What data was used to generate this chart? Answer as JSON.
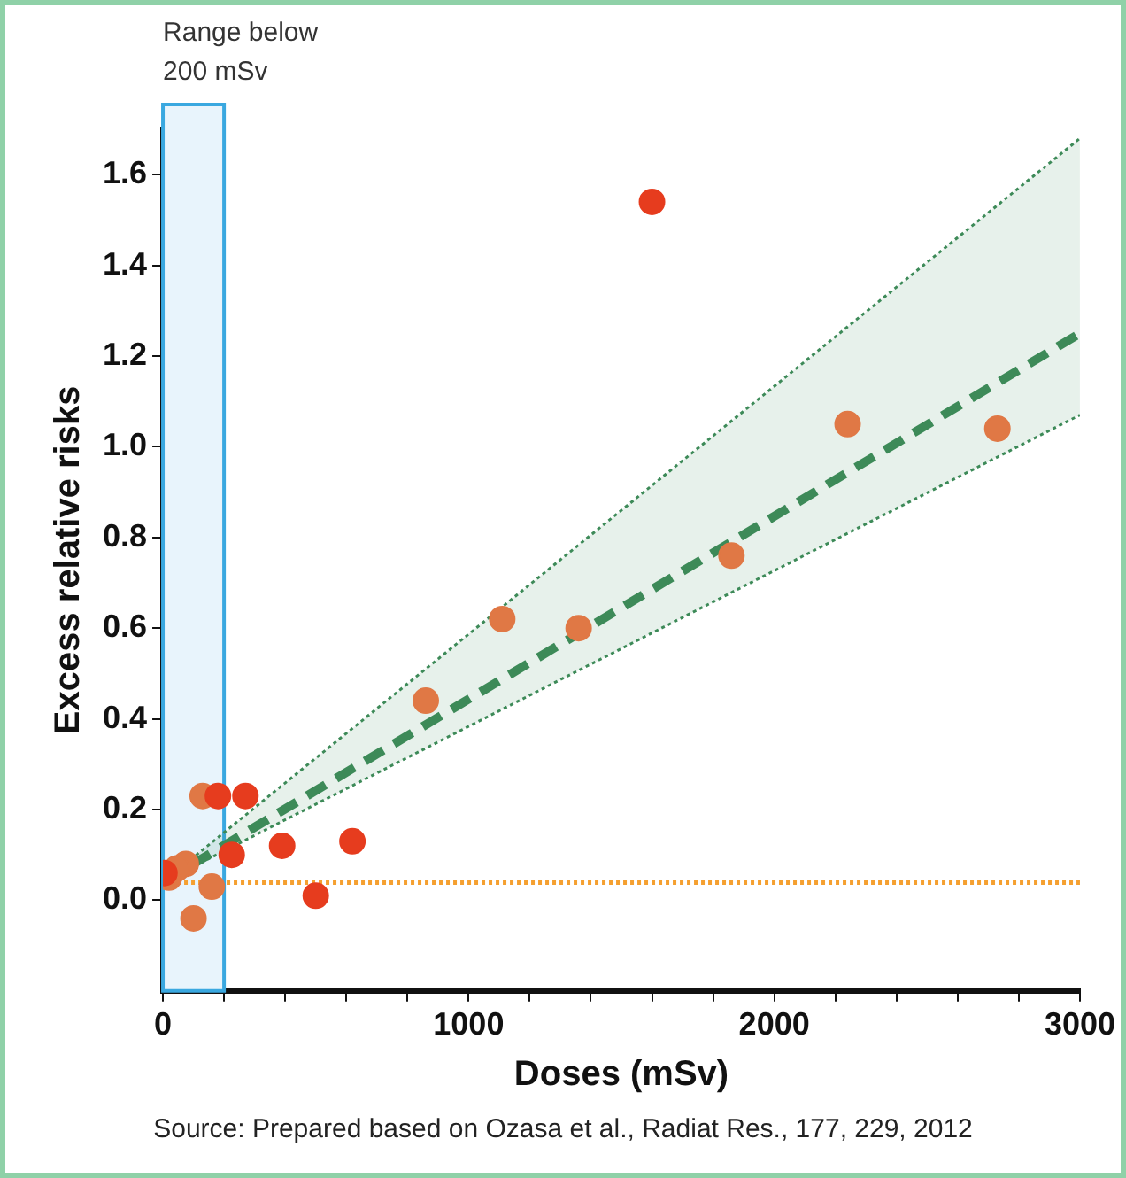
{
  "chart_data": {
    "type": "scatter",
    "xlabel": "Doses (mSv)",
    "ylabel": "Excess relative risks",
    "annotations": [
      "Source: Prepared based on Ozasa et al., Radiat Res., 177, 229, 2012"
    ],
    "xlim": [
      0,
      3000
    ],
    "xticks": [
      0,
      {
        "value": 200,
        "label": null
      },
      {
        "value": 400,
        "label": null
      },
      {
        "value": 600,
        "label": null
      },
      {
        "value": 800,
        "label": null
      },
      1000,
      {
        "value": 1200,
        "label": null
      },
      {
        "value": 1400,
        "label": null
      },
      {
        "value": 1600,
        "label": null
      },
      {
        "value": 1800,
        "label": null
      },
      2000,
      {
        "value": 2200,
        "label": null
      },
      {
        "value": 2400,
        "label": null
      },
      {
        "value": 2600,
        "label": null
      },
      {
        "value": 2800,
        "label": null
      },
      3000
    ],
    "ylim": [
      -0.2,
      1.7
    ],
    "yticks": [
      {
        "value": 0,
        "label": "0.0"
      },
      0.2,
      0.4,
      0.6,
      0.8,
      {
        "value": 1,
        "label": "1.0"
      },
      1.2,
      1.4,
      1.6
    ],
    "grid": false,
    "legend": false,
    "marker": "circle",
    "series": [
      {
        "type": "scatter",
        "color": "#e63c1e",
        "x": [
          1600,
          180,
          270,
          390,
          620,
          500,
          225,
          5
        ],
        "values": [
          1.54,
          0.23,
          0.23,
          0.12,
          0.13,
          0.01,
          0.1,
          0.06
        ]
      },
      {
        "type": "scatter",
        "color": "#e07845",
        "x": [
          2240,
          2730,
          1860,
          1110,
          1360,
          860,
          130,
          100,
          160,
          75,
          45,
          20
        ],
        "values": [
          1.05,
          1.04,
          0.76,
          0.62,
          0.6,
          0.44,
          0.23,
          -0.04,
          0.03,
          0.08,
          0.07,
          0.05
        ]
      },
      {
        "type": "line",
        "color": "#3d8a58",
        "line_style": "dashed",
        "marker": "none",
        "x": [
          0,
          3000
        ],
        "values": [
          0.04,
          1.25
        ],
        "lower": [
          0.04,
          1.07
        ],
        "upper": [
          0.04,
          1.68
        ]
      },
      {
        "type": "line",
        "color": "#3d8a58",
        "line_style": "dotted",
        "marker": "none",
        "x": [
          0,
          3000
        ],
        "values": [
          0.04,
          1.68
        ]
      },
      {
        "type": "line",
        "color": "#3d8a58",
        "line_style": "dotted",
        "marker": "none",
        "x": [
          0,
          3000
        ],
        "values": [
          0.04,
          1.07
        ]
      }
    ],
    "ref_lines": [
      {
        "axis": "y",
        "value": 0.04,
        "color": "#f5a030",
        "line_style": "dotted"
      }
    ],
    "bands": [
      {
        "axis": "x",
        "from": 0,
        "to": 200,
        "label": "Range below 200 mSv",
        "color": "#e8f4fc"
      }
    ]
  }
}
